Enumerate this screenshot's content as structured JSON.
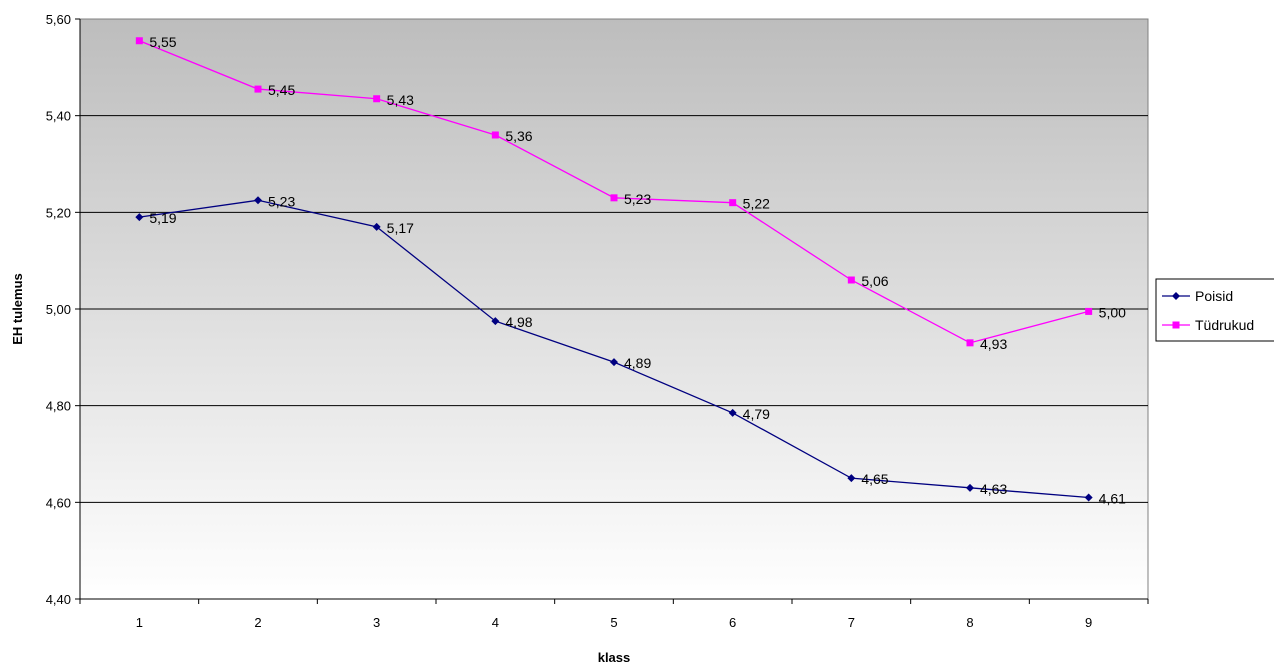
{
  "chart_data": {
    "type": "line",
    "title": "",
    "xlabel": "klass",
    "ylabel": "EH tulemus",
    "categories": [
      "1",
      "2",
      "3",
      "4",
      "5",
      "6",
      "7",
      "8",
      "9"
    ],
    "ylim": [
      4.4,
      5.6
    ],
    "yticks": [
      "4,40",
      "4,60",
      "4,80",
      "5,00",
      "5,20",
      "5,40",
      "5,60"
    ],
    "ytick_values": [
      4.4,
      4.6,
      4.8,
      5.0,
      5.2,
      5.4,
      5.6
    ],
    "grid": true,
    "legend_position": "right",
    "series": [
      {
        "name": "Poisid",
        "color": "#000080",
        "marker": "diamond",
        "values": [
          5.19,
          5.225,
          5.17,
          4.975,
          4.89,
          4.785,
          4.65,
          4.63,
          4.61
        ],
        "labels": [
          "5,19",
          "5,23",
          "5,17",
          "4,98",
          "4,89",
          "4,79",
          "4,65",
          "4,63",
          "4,61"
        ]
      },
      {
        "name": "Tüdrukud",
        "color": "#FF00FF",
        "marker": "square",
        "values": [
          5.555,
          5.455,
          5.435,
          5.36,
          5.23,
          5.22,
          5.06,
          4.93,
          4.995
        ],
        "labels": [
          "5,55",
          "5,45",
          "5,43",
          "5,36",
          "5,23",
          "5,22",
          "5,06",
          "4,93",
          "5,00"
        ]
      }
    ]
  }
}
